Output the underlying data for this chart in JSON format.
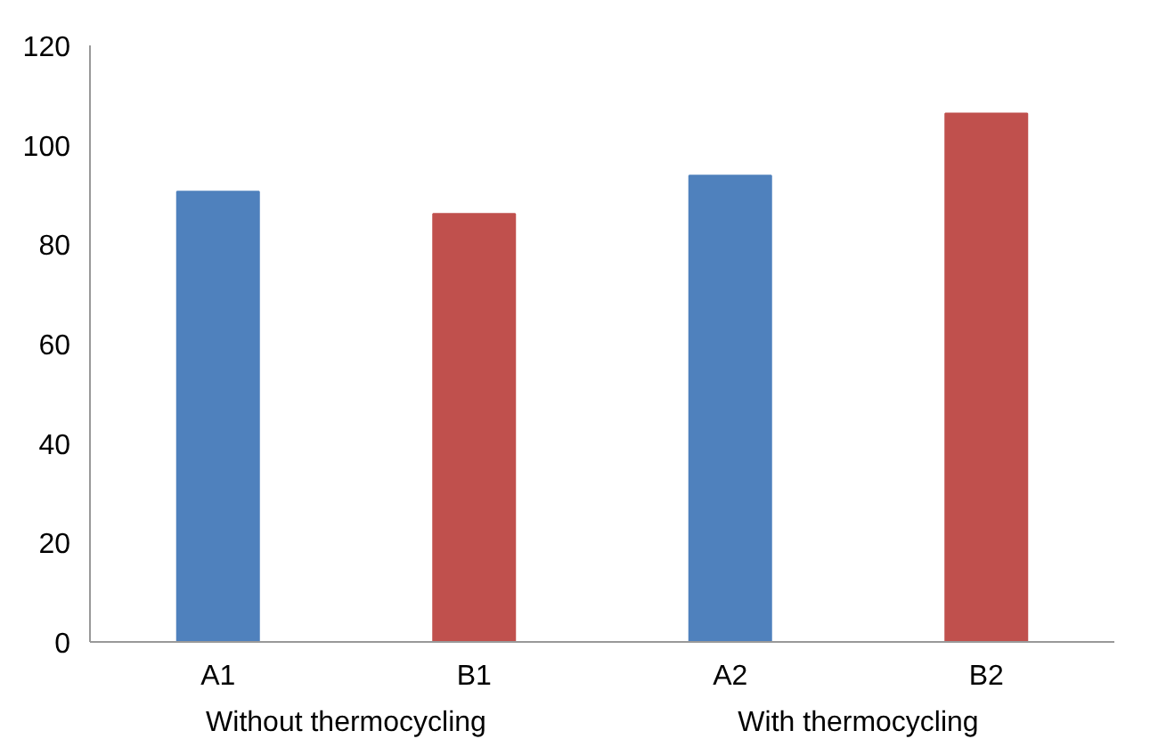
{
  "chart_data": {
    "type": "bar",
    "categories": [
      "A1",
      "B1",
      "A2",
      "B2"
    ],
    "values": [
      90.6,
      86.1,
      93.8,
      106.3
    ],
    "colors": [
      "#4f81bd",
      "#c0504d",
      "#4f81bd",
      "#c0504d"
    ],
    "ylim": [
      0,
      120
    ],
    "yticks": [
      0,
      20,
      40,
      60,
      80,
      100,
      120
    ],
    "annotations": [
      "Without thermocycling",
      "With thermocycling"
    ],
    "grid": false
  }
}
